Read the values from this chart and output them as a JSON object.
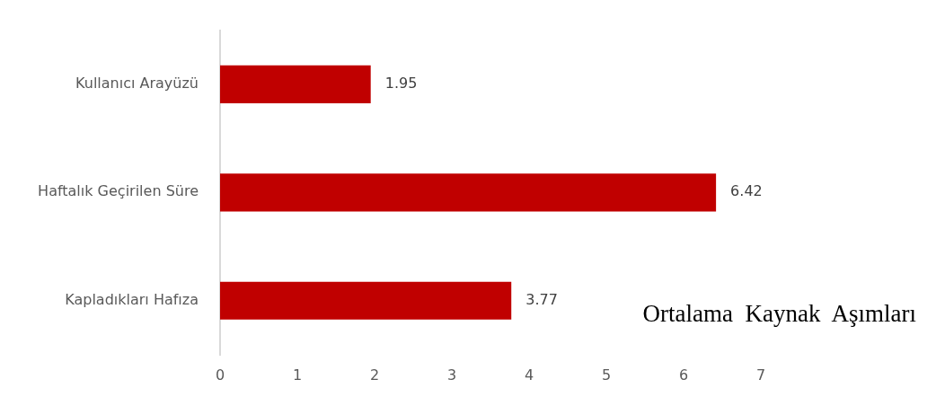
{
  "chart_data": {
    "type": "bar",
    "orientation": "horizontal",
    "title": "Ortalama  Kaynak  Aşımları",
    "categories": [
      "Kullanıcı Arayüzü",
      "Haftalık Geçirilen Süre",
      "Kapladıkları Hafıza"
    ],
    "values": [
      1.95,
      6.42,
      3.77
    ],
    "color": "#c00000",
    "xlim": [
      0,
      7
    ],
    "xticks": [
      0,
      1,
      2,
      3,
      4,
      5,
      6,
      7
    ],
    "data_labels": true,
    "grid": false,
    "legend": false
  }
}
